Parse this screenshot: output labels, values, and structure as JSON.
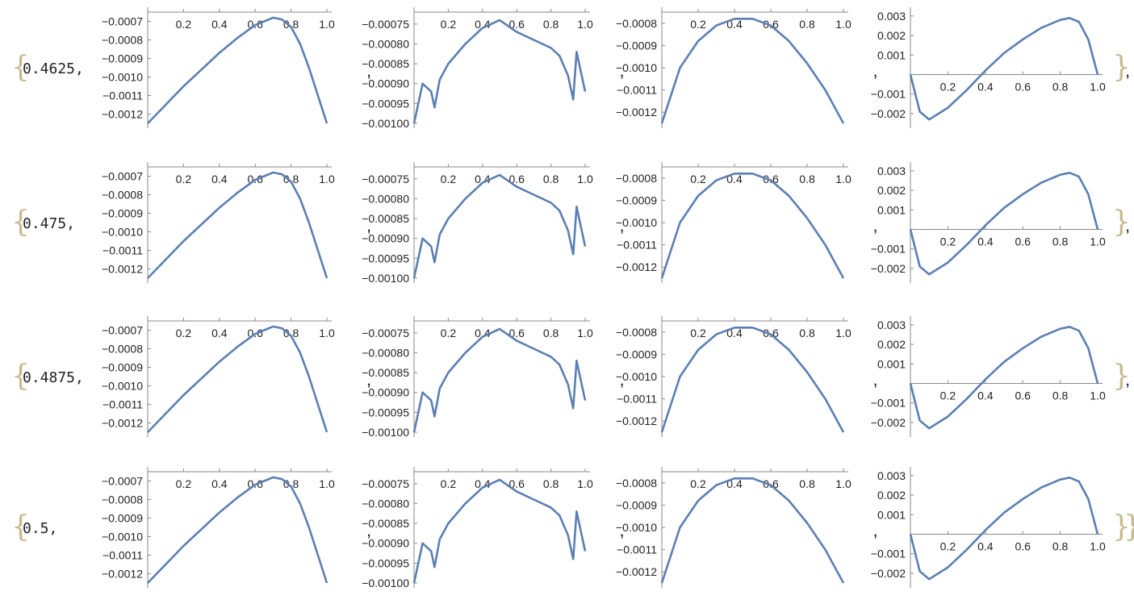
{
  "colors": {
    "curve": "#5b7fb2",
    "axis": "#888888",
    "text": "#222222",
    "brace": "#c8b98c"
  },
  "punctuation": {
    "open_brace": "{",
    "close_brace": "}",
    "comma": ","
  },
  "rows": [
    {
      "param": "0.4625"
    },
    {
      "param": "0.475"
    },
    {
      "param": "0.4875"
    },
    {
      "param": "0.5"
    }
  ],
  "chart_data": [
    {
      "type": "line",
      "title": "",
      "xlabel": "",
      "ylabel": "",
      "xlim": [
        0,
        1.0
      ],
      "ylim": [
        -0.00125,
        -0.00065
      ],
      "x_ticks": [
        "0.2",
        "0.4",
        "0.6",
        "0.8",
        "1.0"
      ],
      "y_ticks": [
        "-0.0007",
        "-0.0008",
        "-0.0009",
        "-0.0010",
        "-0.0011",
        "-0.0012"
      ],
      "series": [
        {
          "x": [
            0,
            0.1,
            0.2,
            0.3,
            0.4,
            0.5,
            0.6,
            0.65,
            0.7,
            0.75,
            0.8,
            0.85,
            0.9,
            0.95,
            1.0
          ],
          "y": [
            -0.00125,
            -0.00115,
            -0.00105,
            -0.00096,
            -0.00087,
            -0.00079,
            -0.00072,
            -0.0007,
            -0.00068,
            -0.00069,
            -0.00073,
            -0.00082,
            -0.00095,
            -0.0011,
            -0.00125
          ]
        }
      ]
    },
    {
      "type": "line",
      "title": "",
      "xlabel": "",
      "ylabel": "",
      "xlim": [
        0,
        1.0
      ],
      "ylim": [
        -0.001,
        -0.00072
      ],
      "x_ticks": [
        "0.2",
        "0.4",
        "0.6",
        "0.8",
        "1.0"
      ],
      "y_ticks": [
        "-0.00075",
        "-0.00080",
        "-0.00085",
        "-0.00090",
        "-0.00095",
        "-0.00100"
      ],
      "series": [
        {
          "x": [
            0,
            0.05,
            0.1,
            0.12,
            0.15,
            0.2,
            0.3,
            0.4,
            0.5,
            0.6,
            0.7,
            0.8,
            0.85,
            0.9,
            0.93,
            0.95,
            1.0
          ],
          "y": [
            -0.001,
            -0.0009,
            -0.00092,
            -0.00096,
            -0.00089,
            -0.00085,
            -0.0008,
            -0.00076,
            -0.00074,
            -0.00077,
            -0.00079,
            -0.00081,
            -0.00083,
            -0.00088,
            -0.00094,
            -0.00082,
            -0.00092
          ]
        }
      ]
    },
    {
      "type": "line",
      "title": "",
      "xlabel": "",
      "ylabel": "",
      "xlim": [
        0,
        1.0
      ],
      "ylim": [
        -0.00125,
        -0.00075
      ],
      "x_ticks": [
        "0.2",
        "0.4",
        "0.6",
        "0.8",
        "1.0"
      ],
      "y_ticks": [
        "-0.0008",
        "-0.0009",
        "-0.0010",
        "-0.0011",
        "-0.0012"
      ],
      "series": [
        {
          "x": [
            0,
            0.1,
            0.2,
            0.3,
            0.4,
            0.5,
            0.6,
            0.7,
            0.8,
            0.9,
            1.0
          ],
          "y": [
            -0.00125,
            -0.001,
            -0.00088,
            -0.00081,
            -0.00078,
            -0.00078,
            -0.00081,
            -0.00088,
            -0.00098,
            -0.0011,
            -0.00125
          ]
        }
      ]
    },
    {
      "type": "line",
      "title": "",
      "xlabel": "",
      "ylabel": "",
      "xlim": [
        0,
        1.0
      ],
      "ylim": [
        -0.0025,
        0.0032
      ],
      "x_ticks": [
        "0.2",
        "0.4",
        "0.6",
        "0.8",
        "1.0"
      ],
      "y_ticks": [
        "0.003",
        "0.002",
        "0.001",
        "-0.001",
        "-0.002"
      ],
      "series": [
        {
          "x": [
            0,
            0.05,
            0.1,
            0.2,
            0.3,
            0.4,
            0.5,
            0.6,
            0.7,
            0.8,
            0.85,
            0.9,
            0.95,
            1.0
          ],
          "y": [
            0,
            -0.0019,
            -0.0023,
            -0.0017,
            -0.0008,
            0.0002,
            0.0011,
            0.0018,
            0.0024,
            0.0028,
            0.0029,
            0.0027,
            0.0018,
            0
          ]
        }
      ]
    }
  ]
}
